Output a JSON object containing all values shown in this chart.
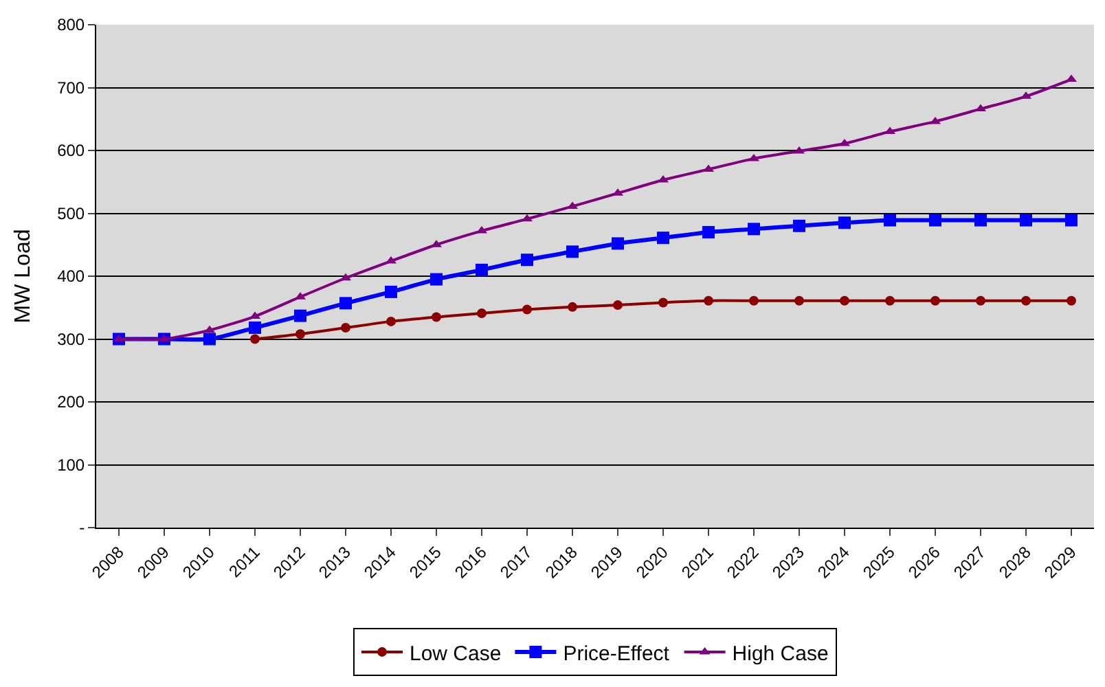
{
  "chart_data": {
    "type": "line",
    "ylabel": "MW Load",
    "categories": [
      "2008",
      "2009",
      "2010",
      "2011",
      "2012",
      "2013",
      "2014",
      "2015",
      "2016",
      "2017",
      "2018",
      "2019",
      "2020",
      "2021",
      "2022",
      "2023",
      "2024",
      "2025",
      "2026",
      "2027",
      "2028",
      "2029"
    ],
    "series": [
      {
        "name": "Low Case",
        "color": "#8b0000",
        "marker": "circle",
        "values": [
          null,
          null,
          null,
          300,
          308,
          318,
          328,
          335,
          341,
          347,
          351,
          354,
          358,
          361,
          361,
          361,
          361,
          361,
          361,
          361,
          361,
          361
        ]
      },
      {
        "name": "Price-Effect",
        "color": "#0000ff",
        "marker": "square",
        "values": [
          300,
          300,
          300,
          318,
          337,
          357,
          375,
          395,
          410,
          426,
          439,
          452,
          461,
          470,
          475,
          480,
          485,
          489,
          489,
          489,
          489,
          489
        ]
      },
      {
        "name": "High Case",
        "color": "#800080",
        "marker": "triangle",
        "values": [
          300,
          300,
          314,
          336,
          367,
          397,
          424,
          450,
          472,
          491,
          511,
          532,
          553,
          570,
          587,
          599,
          611,
          630,
          646,
          666,
          686,
          713
        ]
      }
    ],
    "ylim": [
      0,
      800
    ],
    "yticks": [
      {
        "value": 0,
        "label": "-"
      },
      100,
      200,
      300,
      400,
      500,
      600,
      700,
      800
    ],
    "grid": "y",
    "legend": "bottom",
    "line_style": "solid"
  }
}
